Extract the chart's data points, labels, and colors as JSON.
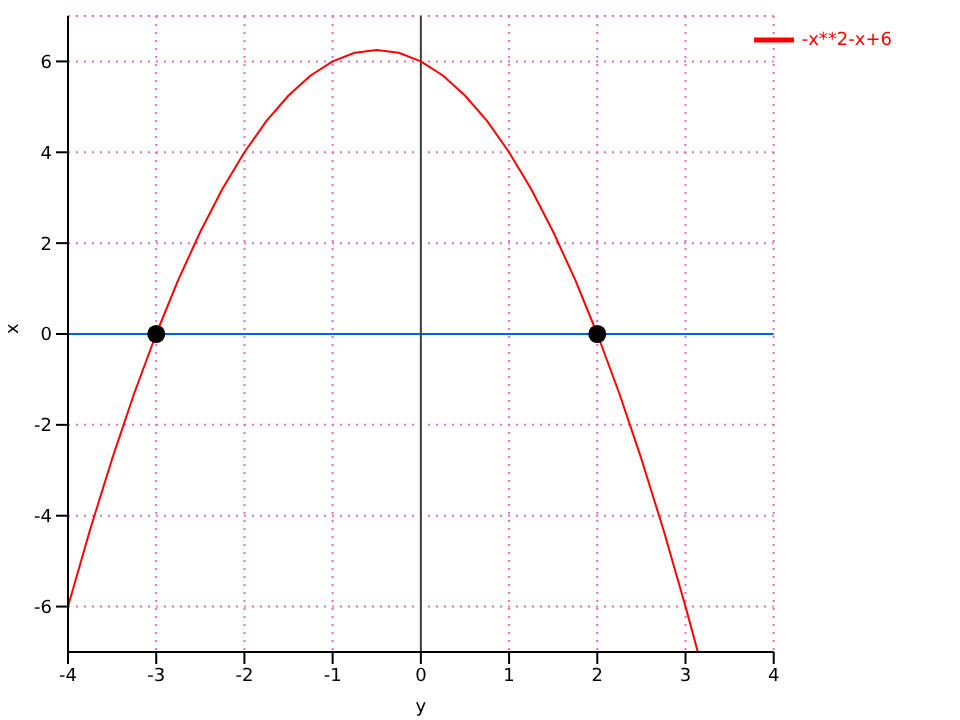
{
  "chart_data": {
    "type": "line",
    "xlabel": "y",
    "ylabel": "x",
    "xlim": [
      -4,
      4
    ],
    "xticks": [
      -4,
      -3,
      -2,
      -1,
      0,
      1,
      2,
      3,
      4
    ],
    "ylim": [
      -7,
      7
    ],
    "yticks": [
      -6,
      -4,
      -2,
      0,
      2,
      4,
      6
    ],
    "grid": true,
    "legend": "top right",
    "series": [
      {
        "name": "-x**2-x+6",
        "color": "#ff0000",
        "marker": "none",
        "x": [
          -4,
          -3.75,
          -3.5,
          -3.25,
          -3,
          -2.75,
          -2.5,
          -2.25,
          -2,
          -1.75,
          -1.5,
          -1.25,
          -1,
          -0.75,
          -0.5,
          -0.25,
          0,
          0.25,
          0.5,
          0.75,
          1,
          1.25,
          1.5,
          1.75,
          2,
          2.25,
          2.5,
          2.75,
          3,
          3.14
        ],
        "values": [
          -6,
          -4.31,
          -2.75,
          -1.31,
          0,
          1.19,
          2.25,
          3.19,
          4,
          4.69,
          5.25,
          5.69,
          6,
          6.19,
          6.25,
          6.19,
          6,
          5.69,
          5.25,
          4.69,
          4,
          3.19,
          2.25,
          1.19,
          0,
          -1.31,
          -2.75,
          -4.31,
          -6,
          -7
        ]
      },
      {
        "color": "#000000",
        "type": "scatter",
        "marker": "circle",
        "x": [
          -3,
          2
        ],
        "values": [
          0,
          0
        ]
      }
    ],
    "ref_lines": [
      {
        "axis": "y",
        "value": 0,
        "color": "#0060ff"
      },
      {
        "axis": "x",
        "value": 0,
        "color": "#404040"
      }
    ]
  }
}
